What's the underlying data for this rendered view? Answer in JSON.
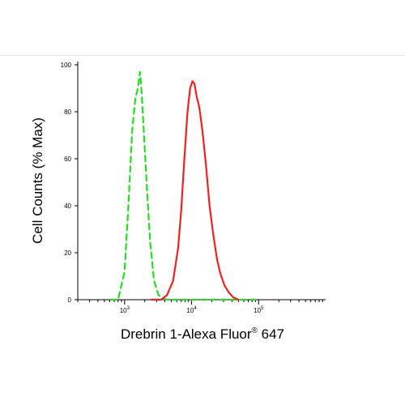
{
  "chart_data": {
    "type": "line",
    "xlabel": "Drebrin 1-Alexa Fluor",
    "xlabel_superscript": "®",
    "xlabel_suffix": " 647",
    "ylabel": "Cell Counts (% Max)",
    "x_scale": "log",
    "xlim": [
      200,
      1000000
    ],
    "ylim": [
      0,
      100
    ],
    "y_ticks": [
      0,
      20,
      40,
      60,
      80,
      100
    ],
    "y_tick_labels": [
      "0",
      "20",
      "40",
      "60",
      "80",
      "100"
    ],
    "x_major_ticks": [
      1000,
      10000,
      100000
    ],
    "x_tick_labels": [
      {
        "base": "10",
        "exp": "3"
      },
      {
        "base": "10",
        "exp": "4"
      },
      {
        "base": "10",
        "exp": "5"
      }
    ],
    "grid": false,
    "series": [
      {
        "color": "#22dd22",
        "style": "dashed",
        "points": [
          [
            620,
            0
          ],
          [
            800,
            0
          ],
          [
            1000,
            12
          ],
          [
            1150,
            42
          ],
          [
            1300,
            72
          ],
          [
            1450,
            86
          ],
          [
            1550,
            89
          ],
          [
            1700,
            97
          ],
          [
            1800,
            88
          ],
          [
            1950,
            70
          ],
          [
            2150,
            48
          ],
          [
            2400,
            25
          ],
          [
            2750,
            8
          ],
          [
            3200,
            2
          ],
          [
            3700,
            0.5
          ],
          [
            4500,
            0
          ],
          [
            100000,
            0
          ]
        ]
      },
      {
        "color": "#ee2222",
        "style": "solid",
        "points": [
          [
            2500,
            0
          ],
          [
            3500,
            0
          ],
          [
            4300,
            2
          ],
          [
            5300,
            8
          ],
          [
            6300,
            22
          ],
          [
            7000,
            38
          ],
          [
            7800,
            60
          ],
          [
            8700,
            80
          ],
          [
            9500,
            90
          ],
          [
            10300,
            93
          ],
          [
            11000,
            92
          ],
          [
            12000,
            86
          ],
          [
            13000,
            82
          ],
          [
            14500,
            72
          ],
          [
            16300,
            58
          ],
          [
            18500,
            40
          ],
          [
            21000,
            28
          ],
          [
            24000,
            17
          ],
          [
            27000,
            11
          ],
          [
            31000,
            6
          ],
          [
            36000,
            3
          ],
          [
            42000,
            1
          ],
          [
            50000,
            0
          ]
        ]
      }
    ]
  }
}
